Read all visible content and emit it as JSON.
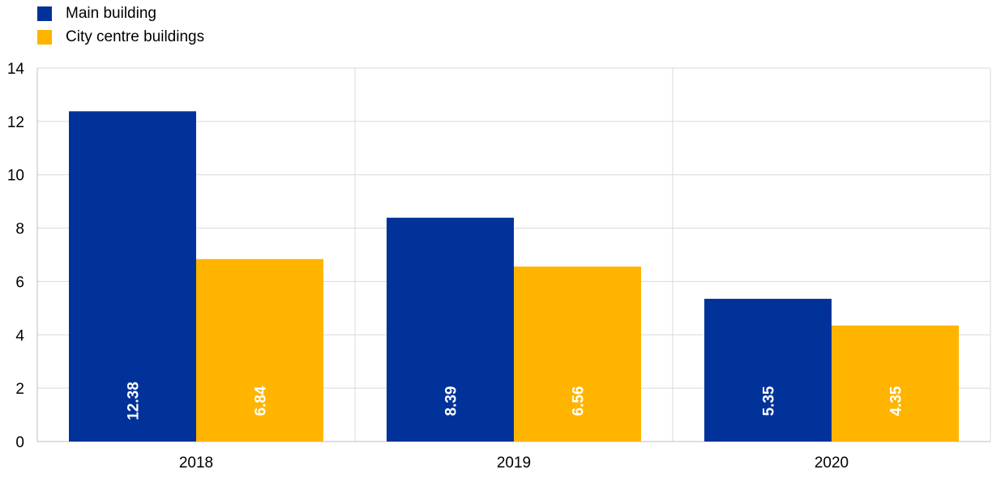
{
  "chart_data": {
    "type": "bar",
    "categories": [
      "2018",
      "2019",
      "2020"
    ],
    "series": [
      {
        "name": "Main building",
        "color": "#003299",
        "values": [
          12.38,
          8.39,
          5.35
        ]
      },
      {
        "name": "City centre buildings",
        "color": "#FFB400",
        "values": [
          6.84,
          6.56,
          4.35
        ]
      }
    ],
    "data_labels": [
      [
        "12.38",
        "8.39",
        "5.35"
      ],
      [
        "6.84",
        "6.56",
        "4.35"
      ]
    ],
    "ylim": [
      0,
      14
    ],
    "yticks": [
      "0",
      "2",
      "4",
      "6",
      "8",
      "10",
      "12",
      "14"
    ],
    "title": "",
    "xlabel": "",
    "ylabel": "",
    "grid": true,
    "legend_position": "top-left"
  }
}
